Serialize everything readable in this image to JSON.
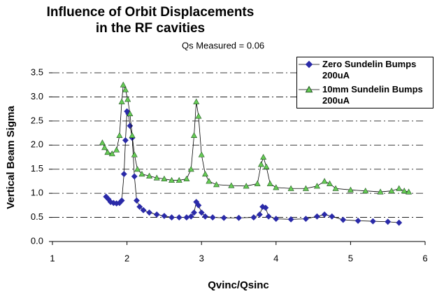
{
  "chart_data": {
    "type": "line",
    "title": "Influence of Orbit Displacements in the RF cavities",
    "annotation": "Qs Measured = 0.06",
    "x_label": "Qvinc/Qsinc",
    "y_label": "Vertical Beam Sigma",
    "xlim": [
      1,
      6
    ],
    "xticks": [
      1,
      2,
      3,
      4,
      5,
      6
    ],
    "ylim": [
      0,
      3.5
    ],
    "yticks": [
      {
        "value": 0,
        "label": "0.0"
      },
      0.5,
      {
        "value": 1,
        "label": "1.0"
      },
      1.5,
      {
        "value": 2,
        "label": "2.0"
      },
      2.5,
      {
        "value": 3,
        "label": "3.0"
      },
      3.5
    ],
    "grid": true,
    "legend": "upper-right",
    "series": [
      {
        "name": "Zero Sundelin Bumps 200uA",
        "color": "#2a2aa8",
        "marker": "diamond",
        "x": [
          1.72,
          1.75,
          1.78,
          1.82,
          1.86,
          1.9,
          1.93,
          1.96,
          1.98,
          2.0,
          2.02,
          2.04,
          2.07,
          2.1,
          2.13,
          2.17,
          2.22,
          2.3,
          2.4,
          2.5,
          2.6,
          2.7,
          2.8,
          2.86,
          2.9,
          2.93,
          2.96,
          3.0,
          3.05,
          3.15,
          3.3,
          3.5,
          3.7,
          3.78,
          3.82,
          3.86,
          3.9,
          4.0,
          4.2,
          4.4,
          4.55,
          4.65,
          4.75,
          4.9,
          5.1,
          5.3,
          5.5,
          5.65
        ],
        "values": [
          0.93,
          0.88,
          0.82,
          0.8,
          0.79,
          0.8,
          0.85,
          1.4,
          2.1,
          2.7,
          2.65,
          2.4,
          2.15,
          1.35,
          0.85,
          0.72,
          0.65,
          0.6,
          0.56,
          0.53,
          0.5,
          0.5,
          0.5,
          0.52,
          0.6,
          0.82,
          0.75,
          0.6,
          0.52,
          0.5,
          0.49,
          0.49,
          0.5,
          0.56,
          0.72,
          0.7,
          0.52,
          0.47,
          0.46,
          0.47,
          0.52,
          0.56,
          0.52,
          0.45,
          0.43,
          0.42,
          0.41,
          0.39
        ]
      },
      {
        "name": "10mm Sundelin Bumps 200uA",
        "color": "#66cc55",
        "marker": "triangle",
        "x": [
          1.67,
          1.7,
          1.74,
          1.8,
          1.86,
          1.9,
          1.93,
          1.95,
          1.98,
          2.01,
          2.04,
          2.07,
          2.1,
          2.14,
          2.2,
          2.3,
          2.4,
          2.5,
          2.6,
          2.7,
          2.8,
          2.86,
          2.9,
          2.93,
          2.96,
          3.0,
          3.05,
          3.1,
          3.2,
          3.4,
          3.6,
          3.75,
          3.8,
          3.83,
          3.87,
          3.92,
          4.0,
          4.2,
          4.4,
          4.55,
          4.65,
          4.72,
          4.8,
          5.0,
          5.2,
          5.4,
          5.55,
          5.65,
          5.72,
          5.78
        ],
        "values": [
          2.05,
          1.95,
          1.85,
          1.82,
          1.9,
          2.2,
          2.9,
          3.25,
          3.15,
          2.95,
          2.65,
          2.2,
          1.8,
          1.5,
          1.4,
          1.36,
          1.32,
          1.3,
          1.27,
          1.27,
          1.3,
          1.5,
          2.2,
          2.9,
          2.6,
          1.8,
          1.4,
          1.25,
          1.18,
          1.16,
          1.15,
          1.2,
          1.6,
          1.75,
          1.55,
          1.2,
          1.12,
          1.1,
          1.1,
          1.15,
          1.25,
          1.2,
          1.1,
          1.07,
          1.05,
          1.03,
          1.05,
          1.1,
          1.05,
          1.03
        ]
      }
    ]
  }
}
